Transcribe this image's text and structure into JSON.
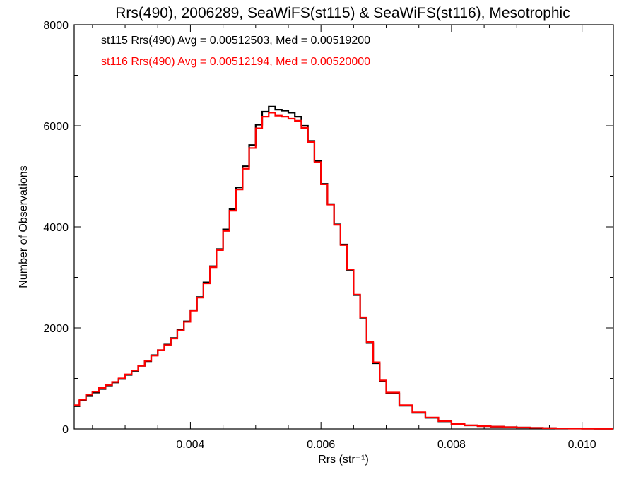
{
  "chart_data": {
    "type": "line",
    "step": true,
    "title": "Rrs(490), 2006289, SeaWiFS(st115) & SeaWiFS(st116), Mesotrophic",
    "xlabel": "Rrs (str⁻¹)",
    "ylabel": "Number of Observations",
    "xlim": [
      0.00222,
      0.01048
    ],
    "ylim": [
      0,
      8000
    ],
    "x_ticks": [
      0.004,
      0.006,
      0.008,
      0.01
    ],
    "x_tick_labels": [
      "0.004",
      "0.006",
      "0.008",
      "0.010"
    ],
    "y_ticks": [
      0,
      2000,
      4000,
      6000,
      8000
    ],
    "y_tick_labels": [
      "0",
      "2000",
      "4000",
      "6000",
      "8000"
    ],
    "grid": false,
    "legend_position": "top-left",
    "series": [
      {
        "name": "st115",
        "color": "#000000",
        "stats_text": "st115 Rrs(490) Avg = 0.00512503, Med = 0.00519200",
        "x": [
          0.00222,
          0.0023,
          0.0024,
          0.0025,
          0.0026,
          0.0027,
          0.0028,
          0.0029,
          0.003,
          0.0031,
          0.0032,
          0.0033,
          0.0034,
          0.0035,
          0.0036,
          0.0037,
          0.0038,
          0.0039,
          0.004,
          0.0041,
          0.0042,
          0.0043,
          0.0044,
          0.0045,
          0.0046,
          0.0047,
          0.0048,
          0.0049,
          0.005,
          0.0051,
          0.0052,
          0.0053,
          0.0054,
          0.0055,
          0.0056,
          0.0057,
          0.0058,
          0.0059,
          0.006,
          0.0061,
          0.0062,
          0.0063,
          0.0064,
          0.0065,
          0.0066,
          0.0067,
          0.0068,
          0.0069,
          0.007,
          0.0072,
          0.0074,
          0.0076,
          0.0078,
          0.008,
          0.0082,
          0.0084,
          0.0086,
          0.0088,
          0.009,
          0.0092,
          0.0094,
          0.0096,
          0.0098,
          0.01,
          0.0102,
          0.0104,
          0.01048
        ],
        "y": [
          450,
          560,
          650,
          720,
          790,
          860,
          920,
          990,
          1070,
          1150,
          1250,
          1340,
          1460,
          1560,
          1670,
          1800,
          1960,
          2130,
          2350,
          2610,
          2900,
          3220,
          3560,
          3950,
          4350,
          4780,
          5200,
          5620,
          6020,
          6280,
          6380,
          6320,
          6300,
          6260,
          6180,
          6000,
          5700,
          5300,
          4850,
          4450,
          4050,
          3650,
          3150,
          2650,
          2200,
          1700,
          1300,
          950,
          700,
          460,
          320,
          220,
          150,
          95,
          70,
          55,
          45,
          35,
          28,
          22,
          16,
          12,
          8,
          6,
          5,
          4,
          4
        ]
      },
      {
        "name": "st116",
        "color": "#ff0000",
        "stats_text": "st116 Rrs(490) Avg = 0.00512194, Med = 0.00520000",
        "x": [
          0.00222,
          0.0023,
          0.0024,
          0.0025,
          0.0026,
          0.0027,
          0.0028,
          0.0029,
          0.003,
          0.0031,
          0.0032,
          0.0033,
          0.0034,
          0.0035,
          0.0036,
          0.0037,
          0.0038,
          0.0039,
          0.004,
          0.0041,
          0.0042,
          0.0043,
          0.0044,
          0.0045,
          0.0046,
          0.0047,
          0.0048,
          0.0049,
          0.005,
          0.0051,
          0.0052,
          0.0053,
          0.0054,
          0.0055,
          0.0056,
          0.0057,
          0.0058,
          0.0059,
          0.006,
          0.0061,
          0.0062,
          0.0063,
          0.0064,
          0.0065,
          0.0066,
          0.0067,
          0.0068,
          0.0069,
          0.007,
          0.0072,
          0.0074,
          0.0076,
          0.0078,
          0.008,
          0.0082,
          0.0084,
          0.0086,
          0.0088,
          0.009,
          0.0092,
          0.0094,
          0.0096,
          0.0098,
          0.01,
          0.0102,
          0.0104,
          0.01048
        ],
        "y": [
          470,
          580,
          680,
          740,
          810,
          870,
          930,
          1000,
          1080,
          1160,
          1250,
          1350,
          1450,
          1560,
          1660,
          1790,
          1950,
          2120,
          2340,
          2600,
          2880,
          3200,
          3540,
          3920,
          4320,
          4740,
          5150,
          5560,
          5950,
          6180,
          6260,
          6200,
          6180,
          6140,
          6100,
          5960,
          5680,
          5280,
          4840,
          4440,
          4040,
          3640,
          3160,
          2660,
          2210,
          1720,
          1320,
          960,
          720,
          470,
          330,
          225,
          155,
          100,
          72,
          56,
          46,
          36,
          28,
          22,
          16,
          12,
          8,
          6,
          5,
          4,
          4
        ]
      }
    ]
  }
}
